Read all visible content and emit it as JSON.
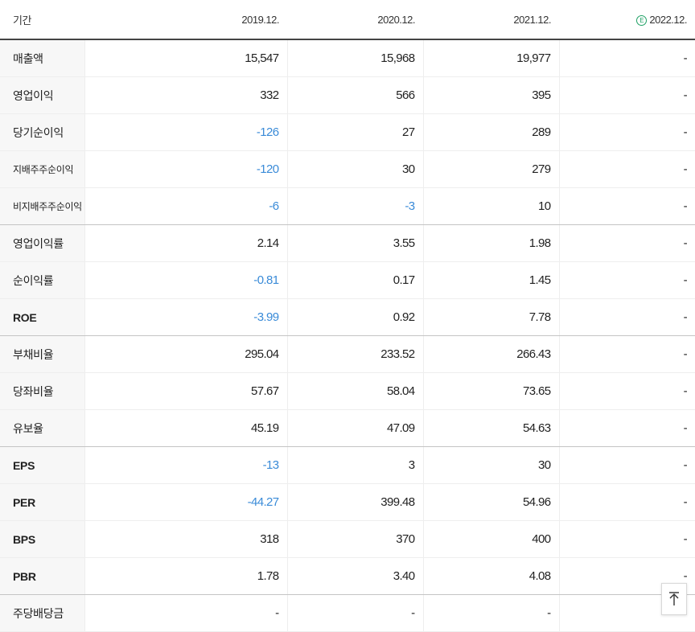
{
  "header": {
    "period_label": "기간",
    "periods": [
      "2019.12.",
      "2020.12.",
      "2021.12.",
      "2022.12."
    ],
    "estimate_badge": "E"
  },
  "colors": {
    "negative_value": "#3a8bd8",
    "estimate_badge": "#1ea064",
    "row_header_bg": "#f7f7f7"
  },
  "rows": [
    {
      "label": "매출액",
      "values": [
        "15,547",
        "15,968",
        "19,977",
        "-"
      ]
    },
    {
      "label": "영업이익",
      "values": [
        "332",
        "566",
        "395",
        "-"
      ]
    },
    {
      "label": "당기순이익",
      "values": [
        "-126",
        "27",
        "289",
        "-"
      ]
    },
    {
      "label": "지배주주순이익",
      "values": [
        "-120",
        "30",
        "279",
        "-"
      ]
    },
    {
      "label": "비지배주주순이익",
      "values": [
        "-6",
        "-3",
        "10",
        "-"
      ]
    },
    {
      "label": "영업이익률",
      "values": [
        "2.14",
        "3.55",
        "1.98",
        "-"
      ]
    },
    {
      "label": "순이익률",
      "values": [
        "-0.81",
        "0.17",
        "1.45",
        "-"
      ]
    },
    {
      "label": "ROE",
      "values": [
        "-3.99",
        "0.92",
        "7.78",
        "-"
      ]
    },
    {
      "label": "부채비율",
      "values": [
        "295.04",
        "233.52",
        "266.43",
        "-"
      ]
    },
    {
      "label": "당좌비율",
      "values": [
        "57.67",
        "58.04",
        "73.65",
        "-"
      ]
    },
    {
      "label": "유보율",
      "values": [
        "45.19",
        "47.09",
        "54.63",
        "-"
      ]
    },
    {
      "label": "EPS",
      "values": [
        "-13",
        "3",
        "30",
        "-"
      ]
    },
    {
      "label": "PER",
      "values": [
        "-44.27",
        "399.48",
        "54.96",
        "-"
      ]
    },
    {
      "label": "BPS",
      "values": [
        "318",
        "370",
        "400",
        "-"
      ]
    },
    {
      "label": "PBR",
      "values": [
        "1.78",
        "3.40",
        "4.08",
        "-"
      ]
    },
    {
      "label": "주당배당금",
      "values": [
        "-",
        "-",
        "-",
        "-"
      ]
    }
  ],
  "scroll_top_icon": "arrow-up-icon"
}
